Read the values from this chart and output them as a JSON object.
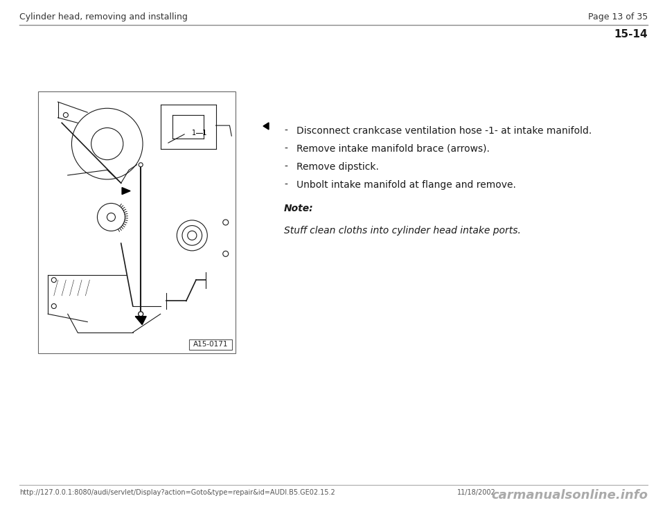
{
  "header_left": "Cylinder head, removing and installing",
  "header_right": "Page 13 of 35",
  "page_number": "15-14",
  "bullet_points": [
    "Disconnect crankcase ventilation hose -1- at intake manifold.",
    "Remove intake manifold brace (arrows).",
    "Remove dipstick.",
    "Unbolt intake manifold at flange and remove."
  ],
  "note_label": "Note:",
  "note_text": "Stuff clean cloths into cylinder head intake ports.",
  "image_label": "A15-0171",
  "footer_left": "http://127.0.0.1:8080/audi/servlet/Display?action=Goto&type=repair&id=AUDI.B5.GE02.15.2",
  "footer_right_date": "11/18/2002",
  "footer_watermark": "carmanualsonline.info",
  "bg_color": "#ffffff",
  "header_line_color": "#aaaaaa",
  "text_color": "#1a1a1a",
  "header_fontsize": 9,
  "body_fontsize": 10,
  "note_fontsize": 10,
  "footer_fontsize": 7,
  "page_num_fontsize": 11,
  "watermark_fontsize": 13
}
